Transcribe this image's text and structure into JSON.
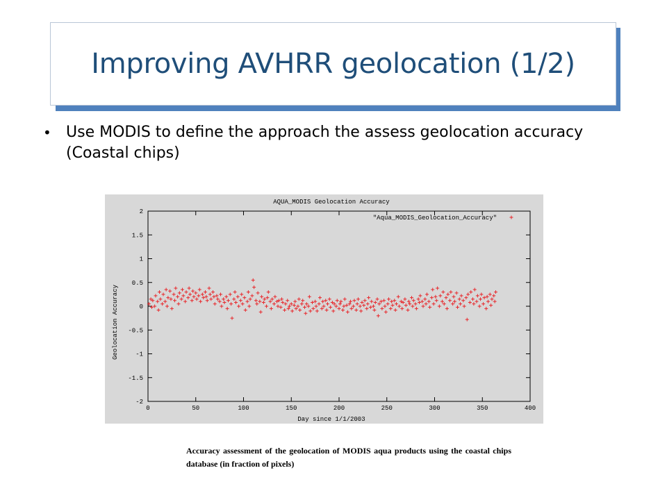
{
  "slide": {
    "title": "Improving AVHRR geolocation (1/2)",
    "bullets": [
      "Use MODIS to define the approach the assess geolocation accuracy (Coastal chips)"
    ],
    "caption": "Accuracy assessment of the geolocation of MODIS aqua products using the coastal chips database (in fraction of pixels)",
    "colors": {
      "title": "#1f4e79",
      "title_shadow": "#4f81bd",
      "series": "#e8262a",
      "plot_bg": "#d8d8d8"
    }
  },
  "chart_data": {
    "type": "scatter",
    "title": "AQUA_MODIS Geolocation Accuracy",
    "xlabel": "Day since 1/1/2003",
    "ylabel": "Geolocation Accuracy",
    "xlim": [
      0,
      400
    ],
    "ylim": [
      -2,
      2
    ],
    "xticks": [
      0,
      50,
      100,
      150,
      200,
      250,
      300,
      350,
      400
    ],
    "yticks": [
      -2,
      -1.5,
      -1,
      -0.5,
      0,
      0.5,
      1,
      1.5,
      2
    ],
    "xtick_labels": [
      "0",
      "50",
      "100",
      "150",
      "200",
      "250",
      "300",
      "350",
      "400"
    ],
    "ytick_labels": [
      "-2",
      "-1.5",
      "-1",
      "-0.5",
      "0",
      "0.5",
      "1",
      "1.5",
      "2"
    ],
    "grid": false,
    "legend_position": "top-right",
    "series": [
      {
        "name": "\"Aqua_MODIS_Geolocation_Accuracy\"",
        "marker": "+",
        "color": "#e8262a",
        "points": [
          [
            1,
            0.05
          ],
          [
            3,
            0.15
          ],
          [
            4,
            -0.02
          ],
          [
            5,
            0.12
          ],
          [
            7,
            0.0
          ],
          [
            8,
            0.22
          ],
          [
            10,
            0.1
          ],
          [
            11,
            -0.08
          ],
          [
            12,
            0.3
          ],
          [
            13,
            0.15
          ],
          [
            15,
            0.05
          ],
          [
            16,
            0.25
          ],
          [
            18,
            0.1
          ],
          [
            19,
            0.35
          ],
          [
            20,
            0.0
          ],
          [
            21,
            0.18
          ],
          [
            23,
            0.32
          ],
          [
            24,
            0.15
          ],
          [
            25,
            -0.05
          ],
          [
            27,
            0.25
          ],
          [
            28,
            0.12
          ],
          [
            29,
            0.38
          ],
          [
            31,
            0.2
          ],
          [
            32,
            0.05
          ],
          [
            33,
            0.28
          ],
          [
            35,
            0.15
          ],
          [
            36,
            0.35
          ],
          [
            37,
            0.22
          ],
          [
            39,
            0.1
          ],
          [
            40,
            0.3
          ],
          [
            42,
            0.18
          ],
          [
            43,
            0.38
          ],
          [
            44,
            0.25
          ],
          [
            46,
            0.12
          ],
          [
            47,
            0.32
          ],
          [
            48,
            0.2
          ],
          [
            50,
            0.28
          ],
          [
            51,
            0.15
          ],
          [
            53,
            0.22
          ],
          [
            54,
            0.35
          ],
          [
            55,
            0.1
          ],
          [
            57,
            0.25
          ],
          [
            58,
            0.18
          ],
          [
            60,
            0.3
          ],
          [
            61,
            0.2
          ],
          [
            62,
            0.12
          ],
          [
            64,
            0.38
          ],
          [
            65,
            0.25
          ],
          [
            66,
            0.15
          ],
          [
            68,
            0.3
          ],
          [
            69,
            0.2
          ],
          [
            70,
            0.05
          ],
          [
            72,
            0.22
          ],
          [
            73,
            0.15
          ],
          [
            75,
            0.1
          ],
          [
            76,
            0.25
          ],
          [
            77,
            0.0
          ],
          [
            79,
            0.15
          ],
          [
            80,
            0.08
          ],
          [
            82,
            0.2
          ],
          [
            83,
            -0.05
          ],
          [
            84,
            0.12
          ],
          [
            86,
            0.25
          ],
          [
            87,
            0.05
          ],
          [
            88,
            -0.25
          ],
          [
            90,
            0.15
          ],
          [
            91,
            0.3
          ],
          [
            92,
            0.08
          ],
          [
            94,
            0.2
          ],
          [
            95,
            0.0
          ],
          [
            97,
            0.12
          ],
          [
            98,
            0.25
          ],
          [
            99,
            0.05
          ],
          [
            101,
            0.18
          ],
          [
            102,
            -0.08
          ],
          [
            104,
            0.1
          ],
          [
            105,
            0.3
          ],
          [
            106,
            0.0
          ],
          [
            107,
            0.15
          ],
          [
            109,
            0.22
          ],
          [
            110,
            0.55
          ],
          [
            111,
            0.4
          ],
          [
            113,
            0.12
          ],
          [
            114,
            0.05
          ],
          [
            115,
            0.28
          ],
          [
            117,
            0.1
          ],
          [
            118,
            -0.12
          ],
          [
            119,
            0.2
          ],
          [
            121,
            0.08
          ],
          [
            122,
            0.15
          ],
          [
            124,
            0.0
          ],
          [
            125,
            0.18
          ],
          [
            126,
            0.3
          ],
          [
            128,
            0.1
          ],
          [
            129,
            -0.05
          ],
          [
            130,
            0.15
          ],
          [
            132,
            0.05
          ],
          [
            133,
            0.2
          ],
          [
            135,
            0.1
          ],
          [
            136,
            0.0
          ],
          [
            137,
            0.12
          ],
          [
            139,
            -0.02
          ],
          [
            140,
            0.15
          ],
          [
            141,
            0.08
          ],
          [
            143,
            -0.08
          ],
          [
            144,
            0.05
          ],
          [
            146,
            0.12
          ],
          [
            147,
            -0.05
          ],
          [
            148,
            0.0
          ],
          [
            150,
            0.05
          ],
          [
            151,
            -0.1
          ],
          [
            153,
            0.02
          ],
          [
            154,
            0.1
          ],
          [
            155,
            -0.05
          ],
          [
            157,
            0.0
          ],
          [
            158,
            0.15
          ],
          [
            159,
            -0.08
          ],
          [
            161,
            0.05
          ],
          [
            162,
            0.12
          ],
          [
            164,
            -0.02
          ],
          [
            165,
            -0.15
          ],
          [
            166,
            0.05
          ],
          [
            168,
            0.0
          ],
          [
            169,
            0.2
          ],
          [
            170,
            -0.1
          ],
          [
            172,
            0.08
          ],
          [
            173,
            -0.05
          ],
          [
            175,
            0.1
          ],
          [
            176,
            0.0
          ],
          [
            177,
            -0.1
          ],
          [
            179,
            0.05
          ],
          [
            180,
            0.18
          ],
          [
            182,
            -0.05
          ],
          [
            183,
            0.1
          ],
          [
            184,
            0.0
          ],
          [
            186,
            0.12
          ],
          [
            187,
            -0.08
          ],
          [
            188,
            0.05
          ],
          [
            190,
            0.15
          ],
          [
            191,
            -0.02
          ],
          [
            193,
            0.08
          ],
          [
            194,
            -0.1
          ],
          [
            195,
            0.05
          ],
          [
            197,
            0.0
          ],
          [
            198,
            0.12
          ],
          [
            200,
            -0.05
          ],
          [
            201,
            0.05
          ],
          [
            202,
            0.1
          ],
          [
            204,
            -0.08
          ],
          [
            205,
            0.0
          ],
          [
            206,
            0.15
          ],
          [
            208,
            0.02
          ],
          [
            209,
            -0.12
          ],
          [
            211,
            0.05
          ],
          [
            212,
            0.1
          ],
          [
            213,
            -0.05
          ],
          [
            215,
            0.0
          ],
          [
            216,
            0.12
          ],
          [
            218,
            -0.08
          ],
          [
            219,
            0.05
          ],
          [
            220,
            0.15
          ],
          [
            222,
            0.0
          ],
          [
            223,
            -0.1
          ],
          [
            224,
            0.08
          ],
          [
            226,
            0.02
          ],
          [
            227,
            0.12
          ],
          [
            229,
            -0.05
          ],
          [
            230,
            0.05
          ],
          [
            231,
            0.18
          ],
          [
            233,
            -0.02
          ],
          [
            234,
            0.1
          ],
          [
            236,
            0.0
          ],
          [
            237,
            -0.08
          ],
          [
            238,
            0.08
          ],
          [
            240,
            0.15
          ],
          [
            241,
            -0.2
          ],
          [
            242,
            0.05
          ],
          [
            244,
            0.1
          ],
          [
            245,
            -0.05
          ],
          [
            247,
            0.12
          ],
          [
            248,
            0.0
          ],
          [
            249,
            -0.12
          ],
          [
            251,
            0.05
          ],
          [
            252,
            0.15
          ],
          [
            254,
            -0.05
          ],
          [
            255,
            0.1
          ],
          [
            256,
            0.02
          ],
          [
            258,
            0.12
          ],
          [
            259,
            -0.08
          ],
          [
            260,
            0.05
          ],
          [
            262,
            0.2
          ],
          [
            263,
            0.0
          ],
          [
            265,
            0.1
          ],
          [
            266,
            -0.05
          ],
          [
            267,
            0.08
          ],
          [
            269,
            0.15
          ],
          [
            270,
            0.02
          ],
          [
            272,
            -0.08
          ],
          [
            273,
            0.1
          ],
          [
            274,
            0.05
          ],
          [
            276,
            0.18
          ],
          [
            277,
            0.0
          ],
          [
            278,
            0.12
          ],
          [
            280,
            0.05
          ],
          [
            281,
            -0.05
          ],
          [
            283,
            0.15
          ],
          [
            284,
            0.08
          ],
          [
            285,
            0.22
          ],
          [
            287,
            0.1
          ],
          [
            288,
            0.0
          ],
          [
            290,
            0.15
          ],
          [
            291,
            0.05
          ],
          [
            292,
            0.25
          ],
          [
            294,
            0.1
          ],
          [
            295,
            -0.02
          ],
          [
            297,
            0.18
          ],
          [
            298,
            0.35
          ],
          [
            299,
            0.05
          ],
          [
            301,
            0.2
          ],
          [
            302,
            0.12
          ],
          [
            303,
            0.38
          ],
          [
            305,
            0.0
          ],
          [
            306,
            0.22
          ],
          [
            308,
            0.1
          ],
          [
            309,
            0.3
          ],
          [
            310,
            0.05
          ],
          [
            312,
            0.18
          ],
          [
            313,
            -0.05
          ],
          [
            314,
            0.25
          ],
          [
            316,
            0.12
          ],
          [
            317,
            0.3
          ],
          [
            319,
            0.05
          ],
          [
            320,
            0.2
          ],
          [
            321,
            0.1
          ],
          [
            323,
            0.28
          ],
          [
            324,
            -0.02
          ],
          [
            326,
            0.15
          ],
          [
            327,
            0.05
          ],
          [
            328,
            0.22
          ],
          [
            330,
            0.12
          ],
          [
            331,
            0.0
          ],
          [
            333,
            0.18
          ],
          [
            334,
            -0.28
          ],
          [
            335,
            0.25
          ],
          [
            337,
            0.08
          ],
          [
            338,
            0.3
          ],
          [
            340,
            0.15
          ],
          [
            341,
            0.05
          ],
          [
            342,
            0.35
          ],
          [
            344,
            0.1
          ],
          [
            345,
            0.22
          ],
          [
            347,
            0.0
          ],
          [
            348,
            0.15
          ],
          [
            349,
            0.25
          ],
          [
            351,
            0.05
          ],
          [
            352,
            0.18
          ],
          [
            354,
            -0.05
          ],
          [
            355,
            0.2
          ],
          [
            356,
            0.1
          ],
          [
            358,
            0.25
          ],
          [
            359,
            0.02
          ],
          [
            360,
            0.15
          ],
          [
            362,
            0.22
          ],
          [
            363,
            0.1
          ],
          [
            364,
            0.3
          ]
        ]
      }
    ]
  }
}
